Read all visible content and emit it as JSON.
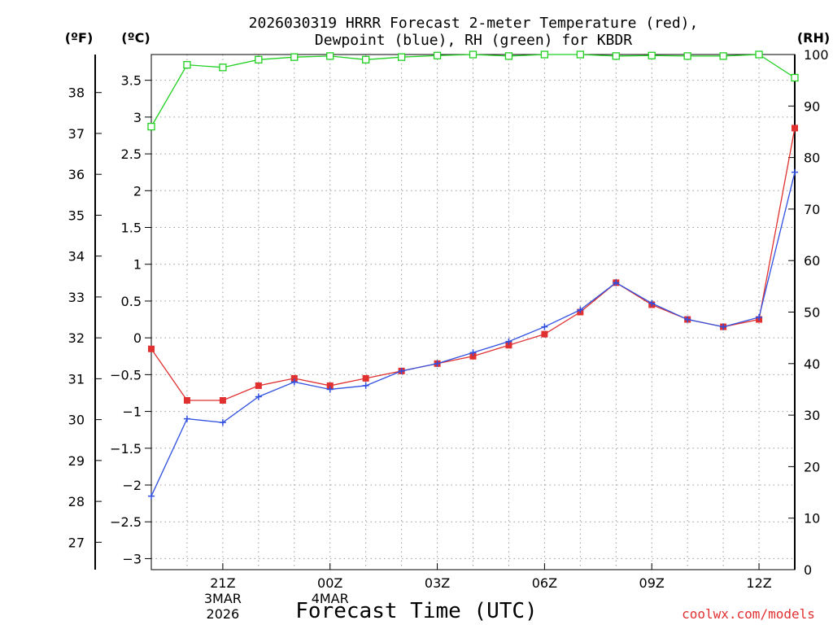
{
  "chart_data": {
    "type": "line",
    "title_line1": "2026030319 HRRR Forecast 2-meter Temperature (red),",
    "title_line2": "Dewpoint (blue), RH (green) for KBDR",
    "xlabel": "Forecast Time (UTC)",
    "credit": "coolwx.com/models",
    "units": {
      "fahrenheit": "(ºF)",
      "celsius": "(ºC)",
      "rh": "(RH)"
    },
    "x_hours": [
      0,
      1,
      2,
      3,
      4,
      5,
      6,
      7,
      8,
      9,
      10,
      11,
      12,
      13,
      14,
      15,
      16,
      17,
      18
    ],
    "x_ticks": [
      {
        "hour": 2,
        "lines": [
          "21Z",
          "3MAR",
          "2026"
        ]
      },
      {
        "hour": 5,
        "lines": [
          "00Z",
          "4MAR"
        ]
      },
      {
        "hour": 8,
        "lines": [
          "03Z"
        ]
      },
      {
        "hour": 11,
        "lines": [
          "06Z"
        ]
      },
      {
        "hour": 14,
        "lines": [
          "09Z"
        ]
      },
      {
        "hour": 17,
        "lines": [
          "12Z"
        ]
      }
    ],
    "y_celsius_ticks": [
      "-3",
      "-2.5",
      "-2",
      "-1.5",
      "-1",
      "-0.5",
      "0",
      "0.5",
      "1",
      "1.5",
      "2",
      "2.5",
      "3",
      "3.5"
    ],
    "y_fahrenheit_ticks": [
      "27",
      "28",
      "29",
      "30",
      "31",
      "32",
      "33",
      "34",
      "35",
      "36",
      "37",
      "38"
    ],
    "y_rh_ticks": [
      "0",
      "10",
      "20",
      "30",
      "40",
      "50",
      "60",
      "70",
      "80",
      "90",
      "100"
    ],
    "celsius_range": [
      -3.15,
      3.85
    ],
    "rh_range": [
      0,
      100
    ],
    "series": [
      {
        "name": "Temperature",
        "color": "#e03030",
        "marker": "square",
        "values": [
          -0.15,
          -0.85,
          -0.85,
          -0.65,
          -0.55,
          -0.65,
          -0.55,
          -0.45,
          -0.35,
          -0.25,
          -0.1,
          0.05,
          0.35,
          0.75,
          0.45,
          0.25,
          0.15,
          0.25,
          2.85
        ]
      },
      {
        "name": "Dewpoint",
        "color": "#3050e0",
        "marker": "plus",
        "values": [
          -2.15,
          -1.1,
          -1.15,
          -0.8,
          -0.6,
          -0.7,
          -0.65,
          -0.45,
          -0.35,
          -0.2,
          -0.05,
          0.15,
          0.38,
          0.75,
          0.47,
          0.25,
          0.15,
          0.28,
          2.25
        ]
      },
      {
        "name": "RH",
        "color": "#20d020",
        "marker": "open-square",
        "axis": "rh",
        "values": [
          86,
          98,
          97.5,
          99,
          99.5,
          99.7,
          99,
          99.5,
          99.8,
          100,
          99.7,
          100,
          100,
          99.7,
          99.8,
          99.7,
          99.7,
          100,
          95.5
        ]
      }
    ]
  }
}
